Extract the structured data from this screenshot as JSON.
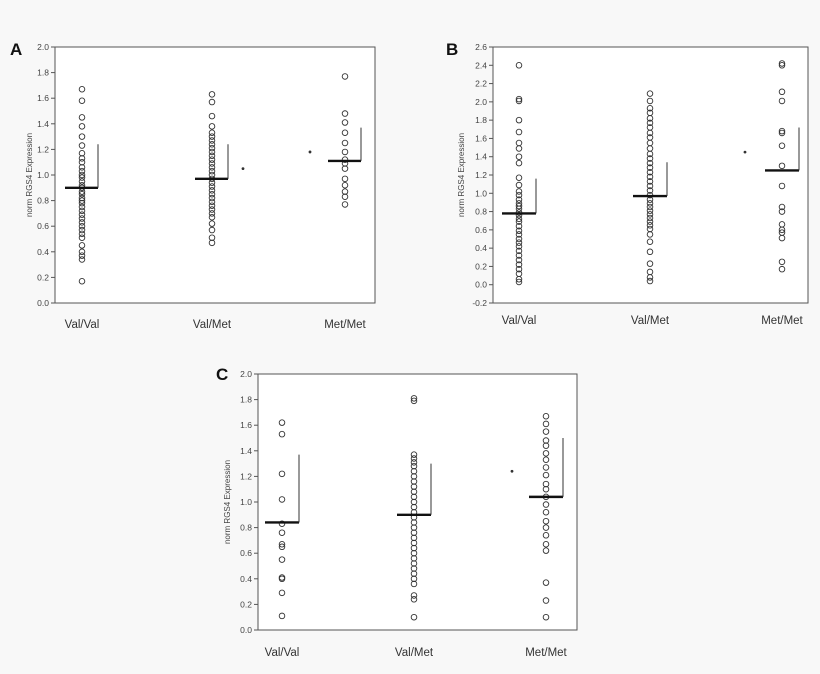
{
  "chart_data": [
    {
      "type": "scatter",
      "panel_label": "A",
      "ylabel": "norm RGS4 Expression",
      "ylim": [
        0.0,
        2.0
      ],
      "y_ticks": [
        "0.0",
        "0.2",
        "0.4",
        "0.6",
        "0.8",
        "1.0",
        "1.2",
        "1.4",
        "1.6",
        "1.8",
        "2.0"
      ],
      "categories": [
        "Val/Val",
        "Val/Met",
        "Met/Met"
      ],
      "groups": [
        {
          "name": "Val/Val",
          "values": [
            1.67,
            1.58,
            1.45,
            1.38,
            1.3,
            1.23,
            1.17,
            1.13,
            1.1,
            1.06,
            1.03,
            1.0,
            0.98,
            0.95,
            0.92,
            0.9,
            0.87,
            0.85,
            0.82,
            0.8,
            0.78,
            0.75,
            0.72,
            0.69,
            0.66,
            0.63,
            0.6,
            0.57,
            0.54,
            0.51,
            0.45,
            0.4,
            0.37,
            0.34,
            0.17
          ],
          "median": 0.9,
          "upper": 1.24
        },
        {
          "name": "Val/Met",
          "values": [
            1.63,
            1.57,
            1.46,
            1.38,
            1.33,
            1.3,
            1.27,
            1.24,
            1.21,
            1.18,
            1.15,
            1.12,
            1.09,
            1.06,
            1.03,
            1.0,
            0.97,
            0.94,
            0.91,
            0.88,
            0.85,
            0.82,
            0.79,
            0.76,
            0.73,
            0.7,
            0.67,
            0.62,
            0.57,
            0.51,
            0.47
          ],
          "median": 0.97,
          "upper": 1.24
        },
        {
          "name": "Met/Met",
          "values": [
            1.77,
            1.48,
            1.41,
            1.33,
            1.25,
            1.18,
            1.12,
            1.09,
            1.05,
            0.97,
            0.92,
            0.87,
            0.83,
            0.77
          ],
          "median": 1.11,
          "upper": 1.37
        }
      ],
      "markers": [
        {
          "y": 1.05
        },
        {
          "y": 1.18
        }
      ]
    },
    {
      "type": "scatter",
      "panel_label": "B",
      "ylabel": "norm RGS4 Expression",
      "ylim": [
        -0.2,
        2.6
      ],
      "y_ticks": [
        "-0.2",
        "0.0",
        "0.2",
        "0.4",
        "0.6",
        "0.8",
        "1.0",
        "1.2",
        "1.4",
        "1.6",
        "1.8",
        "2.0",
        "2.2",
        "2.4",
        "2.6"
      ],
      "categories": [
        "Val/Val",
        "Val/Met",
        "Met/Met"
      ],
      "groups": [
        {
          "name": "Val/Val",
          "values": [
            2.4,
            2.03,
            2.01,
            1.8,
            1.67,
            1.55,
            1.49,
            1.4,
            1.33,
            1.17,
            1.09,
            1.02,
            0.98,
            0.93,
            0.89,
            0.86,
            0.83,
            0.79,
            0.76,
            0.72,
            0.69,
            0.64,
            0.59,
            0.55,
            0.5,
            0.46,
            0.42,
            0.37,
            0.32,
            0.27,
            0.22,
            0.17,
            0.12,
            0.06,
            0.03
          ],
          "median": 0.78,
          "upper": 1.16
        },
        {
          "name": "Val/Met",
          "values": [
            2.09,
            2.01,
            1.93,
            1.88,
            1.82,
            1.77,
            1.72,
            1.66,
            1.61,
            1.55,
            1.49,
            1.43,
            1.38,
            1.33,
            1.28,
            1.23,
            1.18,
            1.13,
            1.08,
            1.03,
            0.98,
            0.93,
            0.89,
            0.85,
            0.81,
            0.77,
            0.73,
            0.69,
            0.65,
            0.61,
            0.55,
            0.47,
            0.36,
            0.23,
            0.14,
            0.08,
            0.04
          ],
          "median": 0.97,
          "upper": 1.34
        },
        {
          "name": "Met/Met",
          "values": [
            2.42,
            2.4,
            2.11,
            2.01,
            1.68,
            1.66,
            1.52,
            1.3,
            1.08,
            0.85,
            0.8,
            0.66,
            0.6,
            0.57,
            0.51,
            0.25,
            0.17
          ],
          "median": 1.25,
          "upper": 1.72
        }
      ],
      "markers": [
        {
          "y": 1.45
        }
      ]
    },
    {
      "type": "scatter",
      "panel_label": "C",
      "ylabel": "norm RGS4 Expression",
      "ylim": [
        0.0,
        2.0
      ],
      "y_ticks": [
        "0.0",
        "0.2",
        "0.4",
        "0.6",
        "0.8",
        "1.0",
        "1.2",
        "1.4",
        "1.6",
        "1.8",
        "2.0"
      ],
      "categories": [
        "Val/Val",
        "Val/Met",
        "Met/Met"
      ],
      "groups": [
        {
          "name": "Val/Val",
          "values": [
            1.62,
            1.53,
            1.22,
            1.02,
            0.83,
            0.76,
            0.67,
            0.65,
            0.55,
            0.41,
            0.4,
            0.29,
            0.11
          ],
          "median": 0.84,
          "upper": 1.37
        },
        {
          "name": "Val/Met",
          "values": [
            1.81,
            1.79,
            1.37,
            1.34,
            1.31,
            1.28,
            1.24,
            1.2,
            1.16,
            1.12,
            1.08,
            1.04,
            1.0,
            0.96,
            0.92,
            0.88,
            0.84,
            0.8,
            0.76,
            0.72,
            0.68,
            0.64,
            0.6,
            0.56,
            0.52,
            0.48,
            0.44,
            0.4,
            0.36,
            0.27,
            0.24,
            0.1
          ],
          "median": 0.9,
          "upper": 1.3
        },
        {
          "name": "Met/Met",
          "values": [
            1.67,
            1.61,
            1.55,
            1.48,
            1.44,
            1.38,
            1.33,
            1.27,
            1.21,
            1.14,
            1.1,
            1.04,
            0.98,
            0.92,
            0.85,
            0.8,
            0.74,
            0.67,
            0.62,
            0.37,
            0.23,
            0.1
          ],
          "median": 1.04,
          "upper": 1.5
        }
      ],
      "markers": [
        {
          "y": 1.24
        }
      ]
    }
  ]
}
